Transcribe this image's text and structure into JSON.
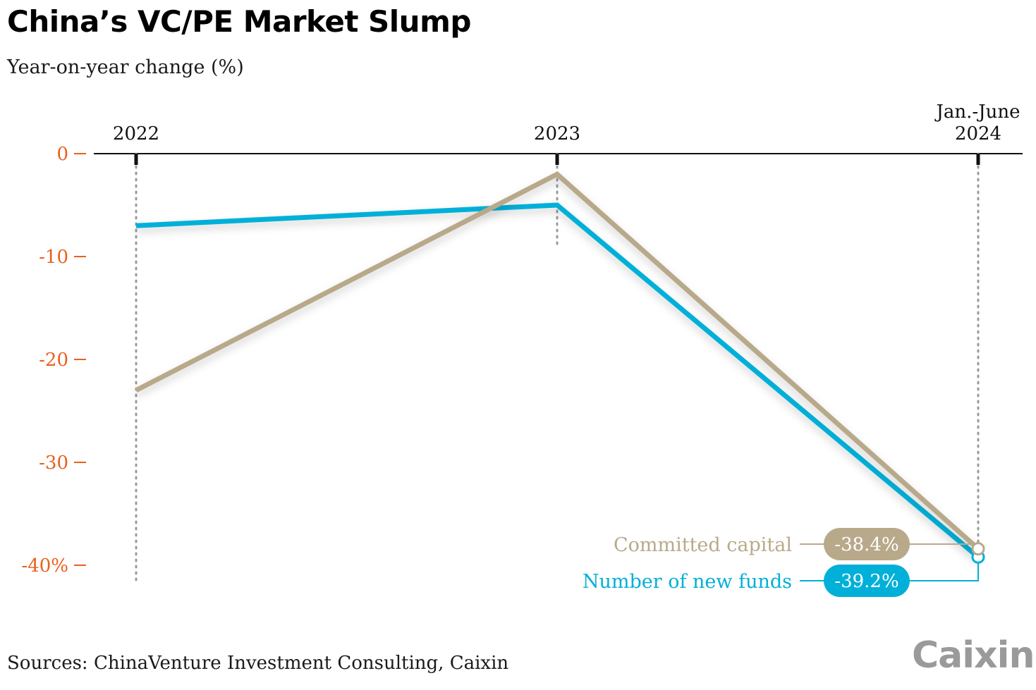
{
  "title": "China’s VC/PE Market Slump",
  "subtitle": "Year-on-year change (%)",
  "source": "Sources: ChinaVenture Investment Consulting, Caixin",
  "logo": "Caixin",
  "chart_data": {
    "type": "line",
    "categories": [
      [
        "2022"
      ],
      [
        "2023"
      ],
      [
        "Jan.-June",
        "2024"
      ]
    ],
    "ylim": [
      -40,
      0
    ],
    "yticks": [
      {
        "value": 0,
        "label": "0"
      },
      {
        "value": -10,
        "label": "-10"
      },
      {
        "value": -20,
        "label": "-20"
      },
      {
        "value": -30,
        "label": "-30"
      },
      {
        "value": -40,
        "label": "-40%"
      }
    ],
    "grid": false,
    "series": [
      {
        "name": "Number of new funds",
        "color": "#00b0d8",
        "values": [
          -7,
          -5,
          -39.2
        ],
        "end_label": "-39.2%"
      },
      {
        "name": "Committed capital",
        "color": "#b8a98a",
        "values": [
          -23,
          -2,
          -38.4
        ],
        "end_label": "-38.4%"
      }
    ]
  }
}
